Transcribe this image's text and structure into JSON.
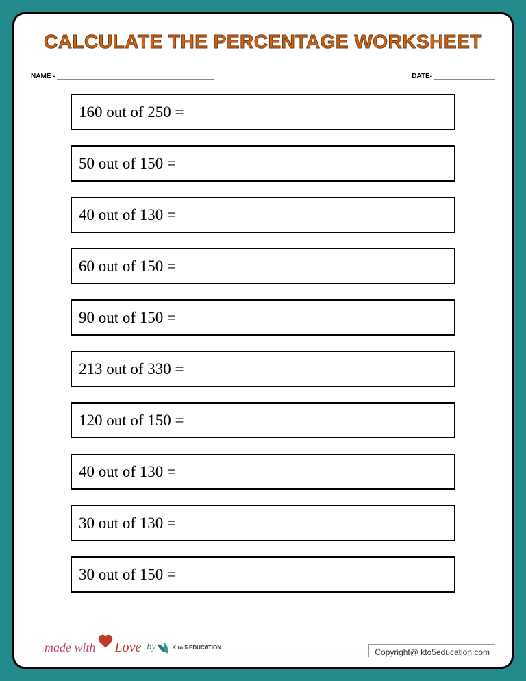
{
  "title": "CALCULATE THE PERCENTAGE WORKSHEET",
  "meta": {
    "name_label": "NAME -",
    "date_label": "DATE-"
  },
  "questions": [
    "160 out of 250 =",
    "50 out of 150 =",
    "40 out of 130 =",
    "60 out of 150 =",
    "90 out of 150 =",
    "213 out of 330 =",
    "120 out of 150 =",
    "40 out of 130 =",
    "30 out of 130 =",
    "30 out of 150 ="
  ],
  "footer": {
    "made_with": "made with",
    "love": "Love",
    "by": "by",
    "brand": "K to 5 EDUCATION",
    "copyright": "Copyright@ kto5education.com"
  },
  "styling": {
    "page_bg": "#238b8d",
    "paper_bg": "#ffffff",
    "border_color": "#000000",
    "title_color": "#c9651e",
    "title_stroke": "#7a3a0a",
    "title_fontsize": 28,
    "question_fontsize": 23,
    "question_box_height": 53,
    "question_gap": 22,
    "border_radius": 18,
    "meta_fontsize": 10,
    "copyright_fontsize": 12,
    "accent_pink": "#b8476f",
    "accent_red": "#c0392b",
    "accent_teal": "#2a7a7a"
  }
}
